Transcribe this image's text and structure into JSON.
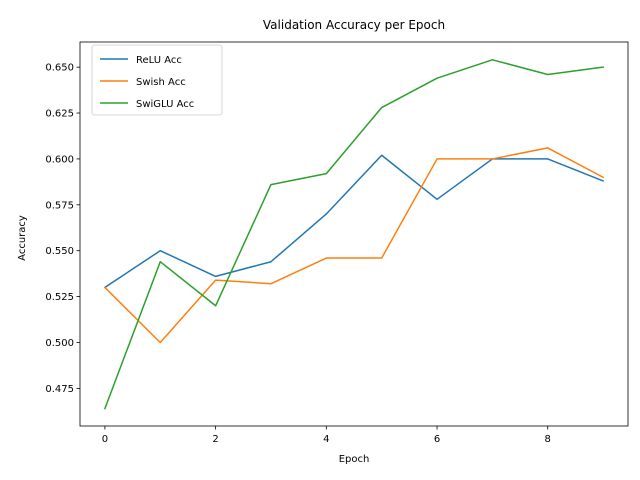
{
  "chart_data": {
    "type": "line",
    "title": "Validation Accuracy per Epoch",
    "xlabel": "Epoch",
    "ylabel": "Accuracy",
    "x": [
      0,
      1,
      2,
      3,
      4,
      5,
      6,
      7,
      8,
      9
    ],
    "xlim": [
      -0.45,
      9.45
    ],
    "ylim": [
      0.4545,
      0.6637
    ],
    "xticks": [
      0,
      2,
      4,
      6,
      8
    ],
    "yticks": [
      0.475,
      0.5,
      0.525,
      0.55,
      0.575,
      0.6,
      0.625,
      0.65
    ],
    "xtick_labels": [
      "0",
      "2",
      "4",
      "6",
      "8"
    ],
    "ytick_labels": [
      "0.475",
      "0.500",
      "0.525",
      "0.550",
      "0.575",
      "0.600",
      "0.625",
      "0.650"
    ],
    "grid": false,
    "legend_position": "top-left",
    "series": [
      {
        "name": "ReLU Acc",
        "color": "#1f77b4",
        "values": [
          0.53,
          0.55,
          0.536,
          0.544,
          0.57,
          0.602,
          0.578,
          0.6,
          0.6,
          0.588
        ]
      },
      {
        "name": "Swish Acc",
        "color": "#ff7f0e",
        "values": [
          0.53,
          0.5,
          0.534,
          0.532,
          0.546,
          0.546,
          0.6,
          0.6,
          0.606,
          0.59
        ]
      },
      {
        "name": "SwiGLU Acc",
        "color": "#2ca02c",
        "values": [
          0.464,
          0.544,
          0.52,
          0.586,
          0.592,
          0.628,
          0.644,
          0.654,
          0.646,
          0.65
        ]
      }
    ]
  }
}
